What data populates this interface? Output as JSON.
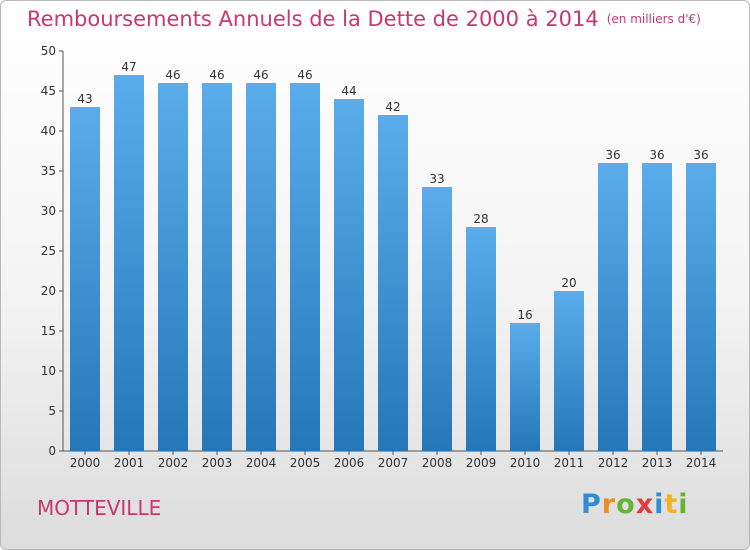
{
  "header": {
    "title": "Remboursements Annuels de la Dette de 2000 à 2014",
    "unit": "(en milliers d'€)"
  },
  "footer": {
    "commune": "MOTTEVILLE",
    "logo_text": "Proxiti"
  },
  "colors": {
    "title": "#c7386e",
    "bar_top": "#5aacea",
    "bar_bottom": "#2577b8",
    "axis": "#555555"
  },
  "chart_data": {
    "type": "bar",
    "title": "Remboursements Annuels de la Dette de 2000 à 2014",
    "subtitle": "(en milliers d'€)",
    "categories": [
      "2000",
      "2001",
      "2002",
      "2003",
      "2004",
      "2005",
      "2006",
      "2007",
      "2008",
      "2009",
      "2010",
      "2011",
      "2012",
      "2013",
      "2014"
    ],
    "values": [
      43,
      47,
      46,
      46,
      46,
      46,
      44,
      42,
      33,
      28,
      16,
      20,
      36,
      36,
      36
    ],
    "ylim": [
      0,
      50
    ],
    "yticks": [
      0,
      5,
      10,
      15,
      20,
      25,
      30,
      35,
      40,
      45,
      50
    ],
    "grid": false,
    "data_labels": true
  }
}
